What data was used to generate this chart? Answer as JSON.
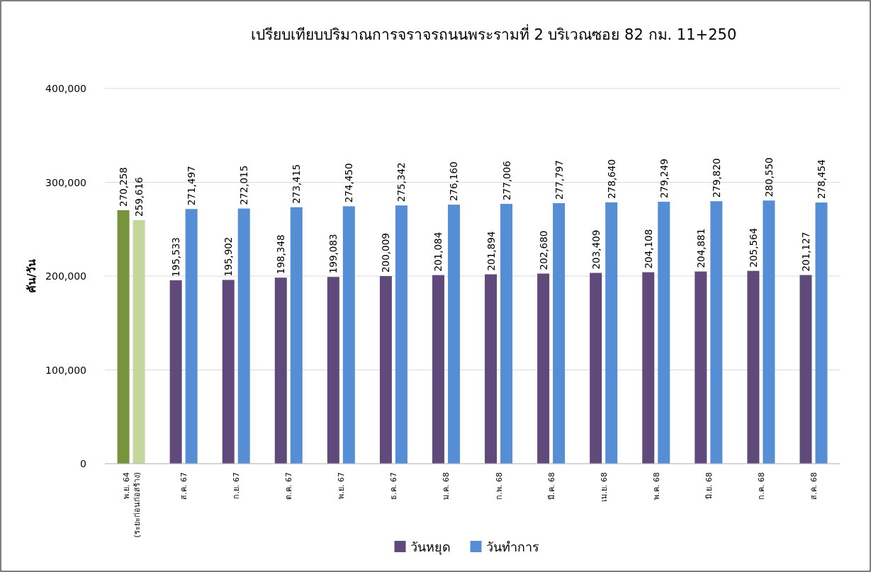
{
  "chart_data": {
    "type": "bar",
    "title": "เปรียบเทียบปริมาณการจราจรถนนพระรามที่ 2 บริเวณซอย 82 กม. 11+250",
    "ylabel": "คัน/วัน",
    "categories": [
      "พ.ย. 64\n(ระยะก่อนก่อสร้าง)",
      "ส.ค. 67",
      "ก.ย. 67",
      "ต.ค. 67",
      "พ.ย. 67",
      "ธ.ค. 67",
      "ม.ค. 68",
      "ก.พ. 68",
      "มี.ค. 68",
      "เม.ย. 68",
      "พ.ค. 68",
      "มิ.ย. 68",
      "ก.ค. 68",
      "ส.ค. 68"
    ],
    "series": [
      {
        "name": "วันหยุด",
        "color": "#604a7b",
        "colors": [
          "#77933c",
          "#604a7b",
          "#604a7b",
          "#604a7b",
          "#604a7b",
          "#604a7b",
          "#604a7b",
          "#604a7b",
          "#604a7b",
          "#604a7b",
          "#604a7b",
          "#604a7b",
          "#604a7b",
          "#604a7b"
        ],
        "value_labels": [
          "270,258",
          "195,533",
          "195,902",
          "198,348",
          "199,083",
          "200,009",
          "201,084",
          "201,894",
          "202,680",
          "203,409",
          "204,108",
          "204,881",
          "205,564",
          "201,127"
        ],
        "values": [
          270258,
          195533,
          195902,
          198348,
          199083,
          200009,
          201084,
          201894,
          202680,
          203409,
          204108,
          204881,
          205564,
          201127
        ]
      },
      {
        "name": "วันทำการ",
        "color": "#558ed5",
        "colors": [
          "#c3d69b",
          "#558ed5",
          "#558ed5",
          "#558ed5",
          "#558ed5",
          "#558ed5",
          "#558ed5",
          "#558ed5",
          "#558ed5",
          "#558ed5",
          "#558ed5",
          "#558ed5",
          "#558ed5",
          "#558ed5"
        ],
        "value_labels": [
          "259,616",
          "271,497",
          "272,015",
          "273,415",
          "274,450",
          "275,342",
          "276,160",
          "277,006",
          "277,797",
          "278,640",
          "279,249",
          "279,820",
          "280,550",
          "278,454"
        ],
        "values": [
          259616,
          271497,
          272015,
          273415,
          274450,
          275342,
          276160,
          277006,
          277797,
          278640,
          279249,
          279820,
          280550,
          278454
        ]
      }
    ],
    "ylim": [
      0,
      400000
    ],
    "yticks": [
      {
        "value": 0,
        "label": "0"
      },
      {
        "value": 100000,
        "label": "100,000"
      },
      {
        "value": 200000,
        "label": "200,000"
      },
      {
        "value": 300000,
        "label": "300,000"
      },
      {
        "value": 400000,
        "label": "400,000"
      }
    ],
    "grid": "y",
    "legend": "bottom"
  }
}
